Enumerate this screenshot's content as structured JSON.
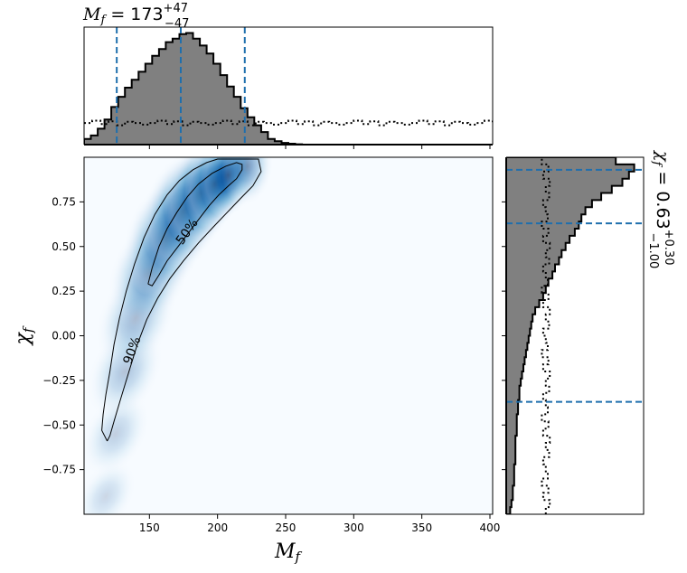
{
  "chart_data": [
    {
      "type": "heatmap",
      "name": "joint-posterior",
      "xlabel": "M_f",
      "ylabel": "χ_f",
      "xlim": [
        102,
        402
      ],
      "ylim": [
        -1.0,
        1.0
      ],
      "x_ticks": [
        150,
        200,
        250,
        300,
        350,
        400
      ],
      "y_ticks": [
        -0.75,
        -0.5,
        -0.25,
        0.0,
        0.25,
        0.5,
        0.75
      ],
      "x_tick_labels": [
        "150",
        "200",
        "250",
        "300",
        "350",
        "400"
      ],
      "y_tick_labels": [
        "−0.75",
        "−0.50",
        "−0.25",
        "0.00",
        "0.25",
        "0.50",
        "0.75"
      ],
      "colormap": "Blues",
      "contours": [
        {
          "label": "50%",
          "points": [
            [
              149,
              0.29
            ],
            [
              152,
              0.38
            ],
            [
              157,
              0.5
            ],
            [
              163,
              0.6
            ],
            [
              170,
              0.69
            ],
            [
              178,
              0.78
            ],
            [
              186,
              0.85
            ],
            [
              196,
              0.91
            ],
            [
              206,
              0.95
            ],
            [
              214,
              0.97
            ],
            [
              218,
              0.96
            ],
            [
              218,
              0.93
            ],
            [
              214,
              0.88
            ],
            [
              208,
              0.84
            ],
            [
              201,
              0.79
            ],
            [
              194,
              0.73
            ],
            [
              187,
              0.66
            ],
            [
              179,
              0.58
            ],
            [
              171,
              0.5
            ],
            [
              163,
              0.42
            ],
            [
              157,
              0.34
            ],
            [
              152,
              0.28
            ],
            [
              149,
              0.29
            ]
          ]
        },
        {
          "label": "90%",
          "points": [
            [
              119,
              -0.59
            ],
            [
              115,
              -0.53
            ],
            [
              116,
              -0.44
            ],
            [
              118,
              -0.33
            ],
            [
              121,
              -0.2
            ],
            [
              124,
              -0.05
            ],
            [
              128,
              0.1
            ],
            [
              133,
              0.25
            ],
            [
              139,
              0.4
            ],
            [
              146,
              0.55
            ],
            [
              154,
              0.68
            ],
            [
              163,
              0.79
            ],
            [
              172,
              0.87
            ],
            [
              182,
              0.93
            ],
            [
              192,
              0.97
            ],
            [
              200,
              0.99
            ],
            [
              230,
              0.99
            ],
            [
              232,
              0.92
            ],
            [
              226,
              0.84
            ],
            [
              217,
              0.77
            ],
            [
              207,
              0.69
            ],
            [
              197,
              0.61
            ],
            [
              186,
              0.52
            ],
            [
              175,
              0.42
            ],
            [
              165,
              0.32
            ],
            [
              156,
              0.21
            ],
            [
              148,
              0.09
            ],
            [
              141,
              -0.05
            ],
            [
              135,
              -0.2
            ],
            [
              129,
              -0.35
            ],
            [
              124,
              -0.48
            ],
            [
              121,
              -0.56
            ],
            [
              119,
              -0.59
            ]
          ]
        }
      ],
      "contour_labels": [
        "50%",
        "90%"
      ]
    },
    {
      "type": "histogram",
      "name": "M_f-marginal",
      "title": "M_f = 173 +47 −47",
      "title_main": "173",
      "title_plus": "+47",
      "title_minus": "−47",
      "xlim": [
        102,
        402
      ],
      "bin_edges_start": 102,
      "bin_width": 5,
      "counts": [
        0.05,
        0.08,
        0.14,
        0.22,
        0.33,
        0.42,
        0.5,
        0.57,
        0.64,
        0.71,
        0.78,
        0.84,
        0.9,
        0.93,
        0.97,
        0.98,
        0.93,
        0.87,
        0.8,
        0.71,
        0.61,
        0.51,
        0.42,
        0.32,
        0.24,
        0.17,
        0.11,
        0.05,
        0.03,
        0.015,
        0.008,
        0.003,
        0.0
      ],
      "prior_level": 0.19,
      "dashed_lines": [
        126,
        173,
        220
      ],
      "accent_color": "#1f6fad",
      "fill_color": "#808080"
    },
    {
      "type": "histogram",
      "name": "chi_f-marginal",
      "orientation": "horizontal",
      "title": "χ_f = 0.63 +0.30 −1.00",
      "title_main": "0.63",
      "title_plus": "+0.30",
      "title_minus": "−1.00",
      "ylim": [
        -1.0,
        1.0
      ],
      "bin_edges_start": -1.0,
      "bin_width": 0.04,
      "counts": [
        0.03,
        0.04,
        0.05,
        0.05,
        0.06,
        0.06,
        0.06,
        0.07,
        0.07,
        0.07,
        0.07,
        0.08,
        0.08,
        0.08,
        0.09,
        0.09,
        0.1,
        0.1,
        0.11,
        0.12,
        0.13,
        0.14,
        0.15,
        0.16,
        0.17,
        0.18,
        0.19,
        0.2,
        0.22,
        0.25,
        0.28,
        0.3,
        0.32,
        0.35,
        0.37,
        0.4,
        0.42,
        0.45,
        0.48,
        0.52,
        0.55,
        0.57,
        0.6,
        0.65,
        0.72,
        0.8,
        0.88,
        0.93,
        0.97,
        0.83
      ],
      "prior_level": 0.3,
      "dashed_lines": [
        -0.37,
        0.63,
        0.93
      ],
      "accent_color": "#1f6fad",
      "fill_color": "#808080"
    }
  ]
}
